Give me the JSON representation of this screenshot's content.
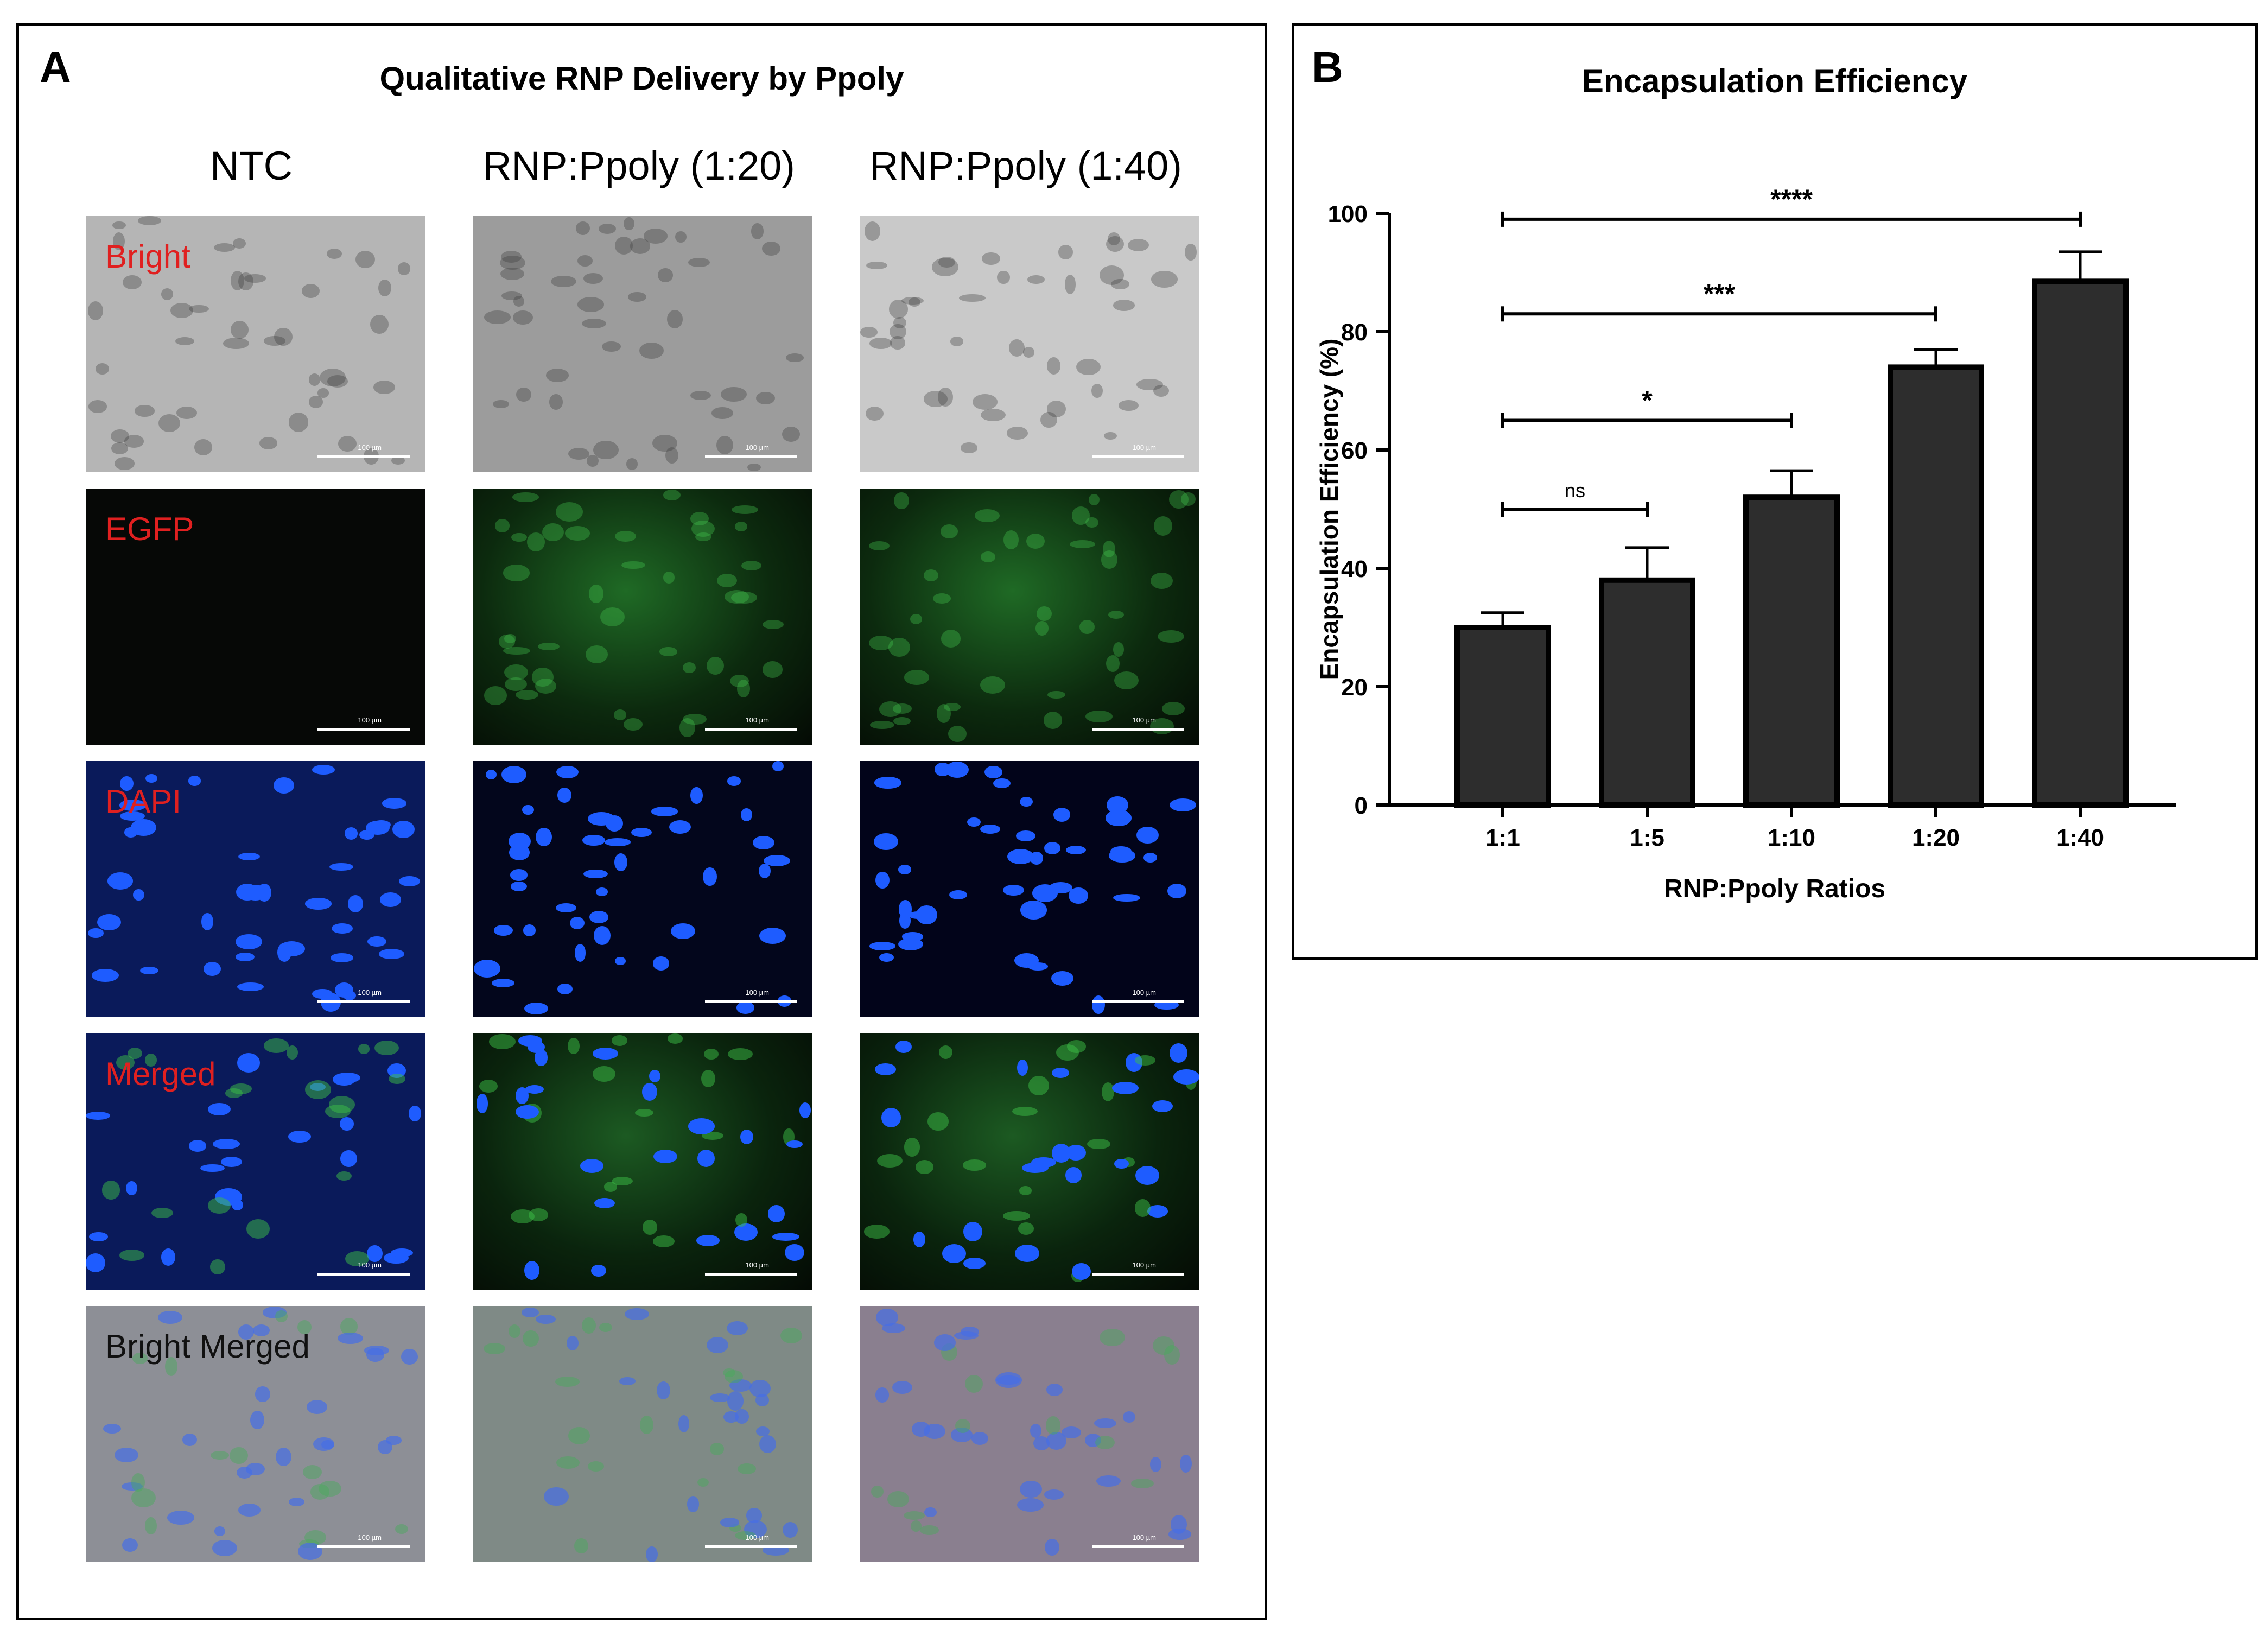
{
  "panel_a": {
    "letter": "A",
    "title": "Qualitative RNP Delivery by Ppoly",
    "columns": [
      "NTC",
      "RNP:Ppoly (1:20)",
      "RNP:Ppoly (1:40)"
    ],
    "row_labels": [
      "Bright",
      "EGFP",
      "DAPI",
      "Merged",
      "Bright Merged"
    ],
    "scale_text": "100 µm",
    "colors": {
      "bright_bg": "#b9b9b9",
      "egfp_bg": "#0a1a0a",
      "dapi_bg": "#050a2a",
      "nucleus": "#1e5cff",
      "egfp_cell": "#2fbf3a",
      "label_red": "#e02020"
    }
  },
  "panel_b": {
    "letter": "B"
  },
  "chart_data": {
    "type": "bar",
    "title": "Encapsulation Efficiency",
    "xlabel": "RNP:Ppoly Ratios",
    "ylabel": "Encapsulation Efficiency (%)",
    "categories": [
      "1:1",
      "1:5",
      "1:10",
      "1:20",
      "1:40"
    ],
    "values": [
      30,
      38,
      52,
      74,
      88.5
    ],
    "errors": [
      2.5,
      5.5,
      4.5,
      3,
      5
    ],
    "ylim": [
      0,
      100
    ],
    "yticks": [
      0,
      20,
      40,
      60,
      80,
      100
    ],
    "bar_color": "#2d2d2d",
    "significance": [
      {
        "from": 0,
        "to": 1,
        "label": "ns",
        "y": 50
      },
      {
        "from": 0,
        "to": 2,
        "label": "*",
        "y": 65
      },
      {
        "from": 0,
        "to": 3,
        "label": "***",
        "y": 83
      },
      {
        "from": 0,
        "to": 4,
        "label": "****",
        "y": 99
      }
    ]
  }
}
